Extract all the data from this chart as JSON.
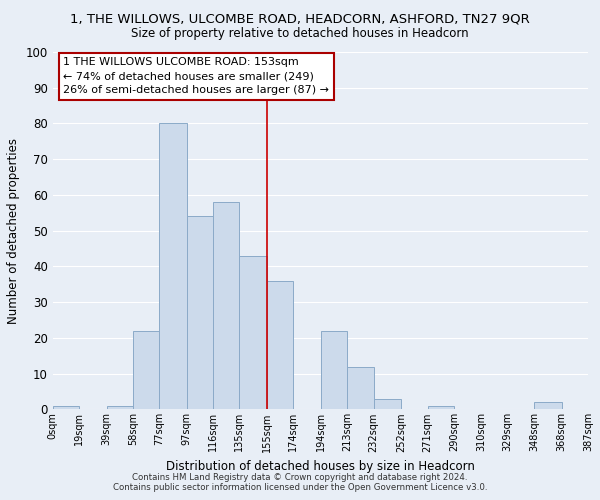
{
  "title": "1, THE WILLOWS, ULCOMBE ROAD, HEADCORN, ASHFORD, TN27 9QR",
  "subtitle": "Size of property relative to detached houses in Headcorn",
  "xlabel": "Distribution of detached houses by size in Headcorn",
  "ylabel": "Number of detached properties",
  "bar_color": "#ccdaeb",
  "bar_edge_color": "#8baac8",
  "background_color": "#e8eef6",
  "grid_color": "white",
  "bin_edges": [
    0,
    19,
    39,
    58,
    77,
    97,
    116,
    135,
    155,
    174,
    194,
    213,
    232,
    252,
    271,
    290,
    310,
    329,
    348,
    368,
    387
  ],
  "bin_labels": [
    "0sqm",
    "19sqm",
    "39sqm",
    "58sqm",
    "77sqm",
    "97sqm",
    "116sqm",
    "135sqm",
    "155sqm",
    "174sqm",
    "194sqm",
    "213sqm",
    "232sqm",
    "252sqm",
    "271sqm",
    "290sqm",
    "310sqm",
    "329sqm",
    "348sqm",
    "368sqm",
    "387sqm"
  ],
  "counts": [
    1,
    0,
    1,
    22,
    80,
    54,
    58,
    43,
    36,
    0,
    22,
    12,
    3,
    0,
    1,
    0,
    0,
    0,
    2,
    0
  ],
  "ylim": [
    0,
    100
  ],
  "yticks": [
    0,
    10,
    20,
    30,
    40,
    50,
    60,
    70,
    80,
    90,
    100
  ],
  "vline_x": 155,
  "vline_color": "#cc0000",
  "annotation_line1": "1 THE WILLOWS ULCOMBE ROAD: 153sqm",
  "annotation_line2": "← 74% of detached houses are smaller (249)",
  "annotation_line3": "26% of semi-detached houses are larger (87) →",
  "footer1": "Contains HM Land Registry data © Crown copyright and database right 2024.",
  "footer2": "Contains public sector information licensed under the Open Government Licence v3.0."
}
